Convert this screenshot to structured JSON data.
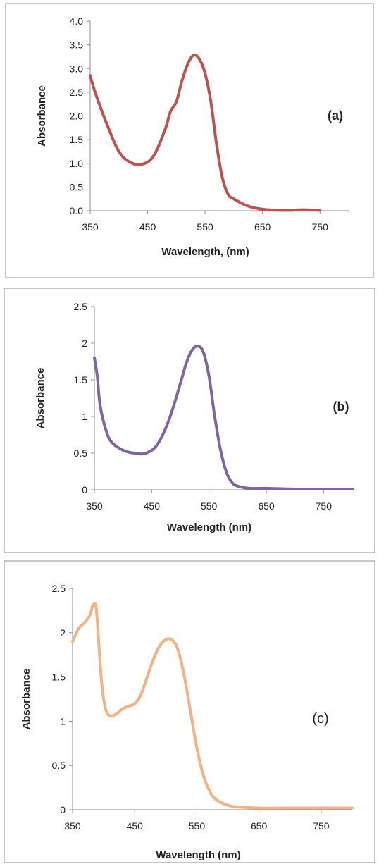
{
  "chart_data": [
    {
      "type": "line",
      "panel_label": "(a)",
      "xlabel": "Wavelength, (nm)",
      "ylabel": "Absorbance",
      "xlim": [
        350,
        800
      ],
      "ylim": [
        0,
        4
      ],
      "x_ticks": [
        "350",
        "450",
        "550",
        "650",
        "750"
      ],
      "y_ticks": [
        "0.0",
        "0.5",
        "1.0",
        "1.5",
        "2.0",
        "2.5",
        "3.0",
        "3.5",
        "4.0"
      ],
      "color": "#c0504d",
      "series": [
        {
          "x": [
            350,
            360,
            380,
            400,
            420,
            440,
            460,
            480,
            490,
            500,
            510,
            520,
            530,
            540,
            550,
            560,
            570,
            580,
            590,
            600,
            620,
            640,
            660,
            680,
            700,
            720,
            750
          ],
          "y": [
            2.85,
            2.45,
            1.8,
            1.25,
            1.02,
            0.98,
            1.15,
            1.7,
            2.1,
            2.3,
            2.75,
            3.1,
            3.28,
            3.2,
            2.9,
            2.3,
            1.4,
            0.7,
            0.35,
            0.25,
            0.12,
            0.05,
            0.02,
            0.01,
            0.01,
            0.02,
            0.01
          ]
        }
      ]
    },
    {
      "type": "line",
      "panel_label": "(b)",
      "xlabel": "Wavelength (nm)",
      "ylabel": "Absorbance",
      "xlim": [
        350,
        800
      ],
      "ylim": [
        0,
        2.5
      ],
      "x_ticks": [
        "350",
        "450",
        "550",
        "650",
        "750"
      ],
      "y_ticks": [
        "0",
        "0.5",
        "1",
        "1.5",
        "2",
        "2.5"
      ],
      "color": "#8064a2",
      "series": [
        {
          "x": [
            350,
            355,
            360,
            370,
            380,
            400,
            420,
            440,
            460,
            480,
            500,
            510,
            520,
            530,
            540,
            550,
            560,
            570,
            580,
            590,
            600,
            620,
            650,
            700,
            750,
            800
          ],
          "y": [
            1.8,
            1.55,
            1.15,
            0.82,
            0.65,
            0.54,
            0.5,
            0.5,
            0.62,
            0.95,
            1.45,
            1.72,
            1.9,
            1.96,
            1.88,
            1.55,
            1.0,
            0.55,
            0.25,
            0.1,
            0.05,
            0.02,
            0.02,
            0.01,
            0.01,
            0.01
          ]
        }
      ]
    },
    {
      "type": "line",
      "panel_label": "(c)",
      "xlabel": "Wavelength (nm)",
      "ylabel": "Absorbance",
      "xlim": [
        350,
        800
      ],
      "ylim": [
        0,
        2.5
      ],
      "x_ticks": [
        "350",
        "450",
        "550",
        "650",
        "750"
      ],
      "y_ticks": [
        "0",
        "0.5",
        "1",
        "1.5",
        "2",
        "2.5"
      ],
      "color": "#f4b183",
      "series": [
        {
          "x": [
            350,
            360,
            370,
            378,
            382,
            385,
            388,
            392,
            396,
            400,
            405,
            412,
            420,
            430,
            440,
            450,
            460,
            470,
            480,
            490,
            500,
            510,
            520,
            530,
            540,
            550,
            560,
            570,
            580,
            600,
            620,
            650,
            700,
            750,
            800
          ],
          "y": [
            1.9,
            2.05,
            2.12,
            2.2,
            2.3,
            2.33,
            2.28,
            1.9,
            1.5,
            1.25,
            1.1,
            1.06,
            1.08,
            1.14,
            1.17,
            1.2,
            1.3,
            1.5,
            1.7,
            1.85,
            1.92,
            1.92,
            1.8,
            1.5,
            1.1,
            0.7,
            0.4,
            0.22,
            0.12,
            0.05,
            0.03,
            0.02,
            0.02,
            0.02,
            0.02
          ]
        }
      ]
    }
  ]
}
